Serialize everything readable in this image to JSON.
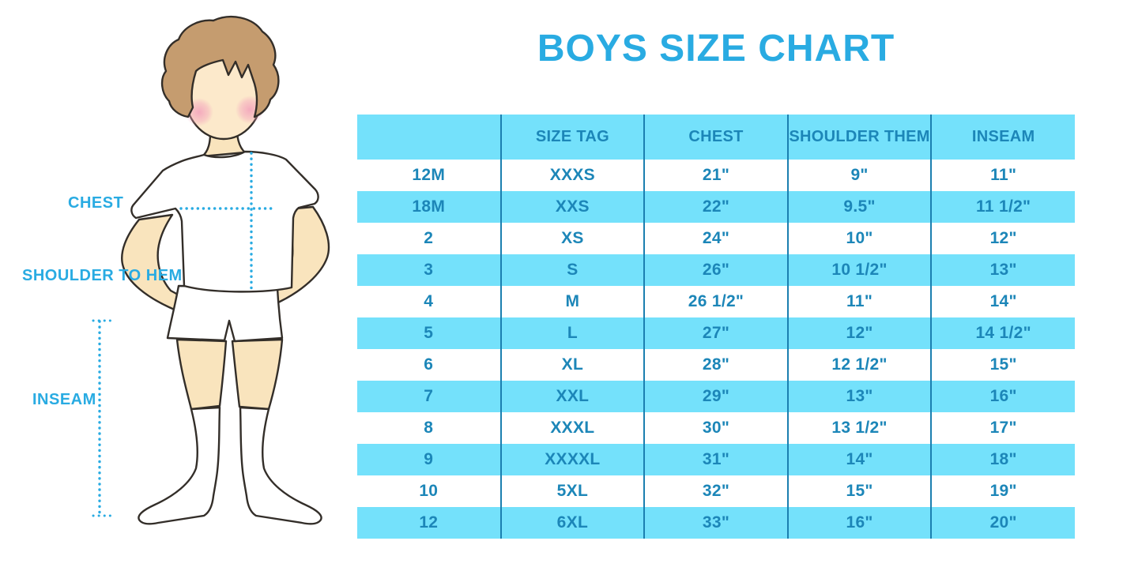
{
  "title": "BOYS SIZE CHART",
  "figure": {
    "chest_label": "CHEST",
    "shoulder_to_hem_label": "SHOULDER TO HEM",
    "inseam_label": "INSEAM"
  },
  "chart_data": {
    "type": "table",
    "title": "BOYS SIZE CHART",
    "columns": [
      "",
      "SIZE TAG",
      "CHEST",
      "SHOULDER THEM",
      "INSEAM"
    ],
    "rows": [
      [
        "12M",
        "XXXS",
        "21\"",
        "9\"",
        "11\""
      ],
      [
        "18M",
        "XXS",
        "22\"",
        "9.5\"",
        "11 1/2\""
      ],
      [
        "2",
        "XS",
        "24\"",
        "10\"",
        "12\""
      ],
      [
        "3",
        "S",
        "26\"",
        "10 1/2\"",
        "13\""
      ],
      [
        "4",
        "M",
        "26 1/2\"",
        "11\"",
        "14\""
      ],
      [
        "5",
        "L",
        "27\"",
        "12\"",
        "14 1/2\""
      ],
      [
        "6",
        "XL",
        "28\"",
        "12 1/2\"",
        "15\""
      ],
      [
        "7",
        "XXL",
        "29\"",
        "13\"",
        "16\""
      ],
      [
        "8",
        "XXXL",
        "30\"",
        "13 1/2\"",
        "17\""
      ],
      [
        "9",
        "XXXXL",
        "31\"",
        "14\"",
        "18\""
      ],
      [
        "10",
        "5XL",
        "32\"",
        "15\"",
        "19\""
      ],
      [
        "12",
        "6XL",
        "33\"",
        "16\"",
        "20\""
      ]
    ],
    "layout_hints": {
      "header_background": "cyan band",
      "row_banding": "alternating white / cyan starting white",
      "column_dividers": "vertical blue lines between all 5 columns",
      "first_header_cell_empty": true
    }
  },
  "colors": {
    "accent_blue": "#29ABE2",
    "band_cyan": "#74E1FB",
    "table_text_blue": "#1C86B8",
    "divider_blue": "#1B7FB0",
    "hair_brown": "#C59C6F",
    "skin_tone": "#F9E4BD",
    "cheek_pink": "#F3A4BC",
    "outline_dark": "#332E29"
  }
}
